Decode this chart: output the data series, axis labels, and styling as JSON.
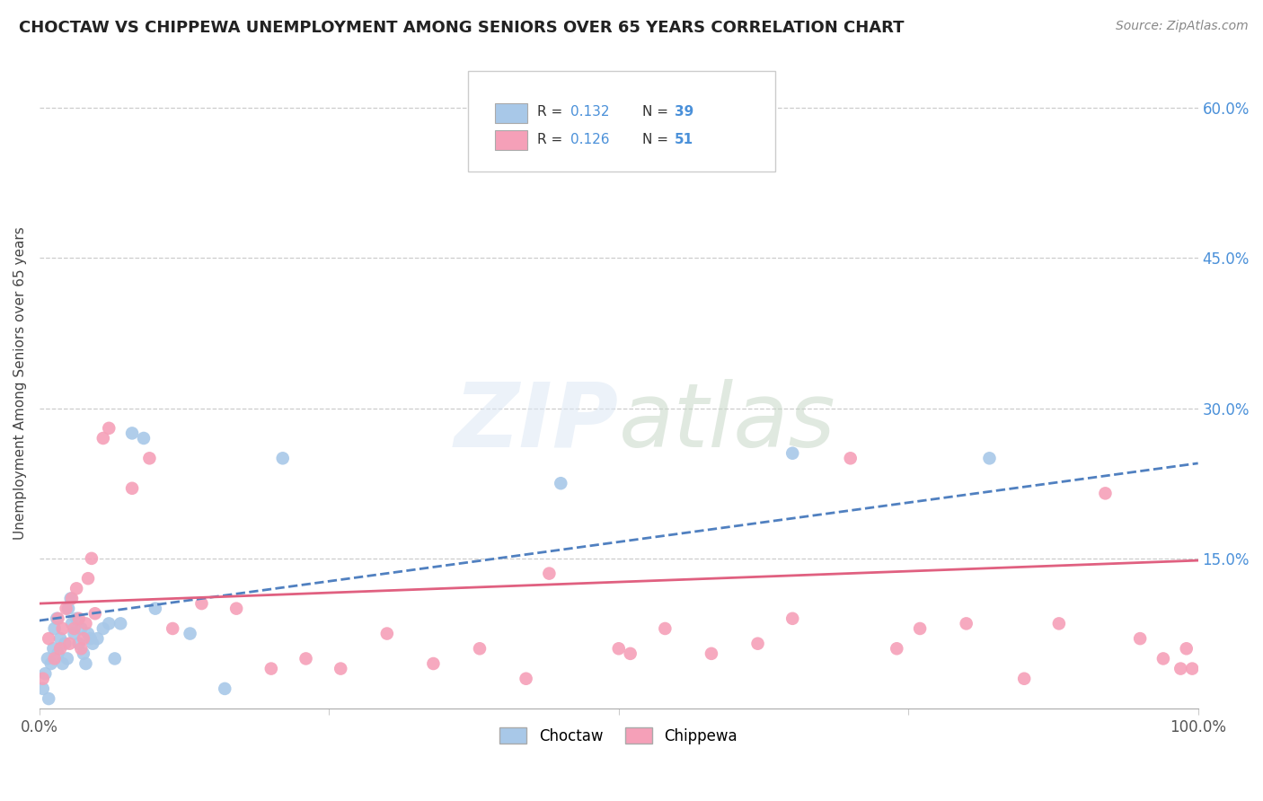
{
  "title": "CHOCTAW VS CHIPPEWA UNEMPLOYMENT AMONG SENIORS OVER 65 YEARS CORRELATION CHART",
  "source": "Source: ZipAtlas.com",
  "ylabel": "Unemployment Among Seniors over 65 years",
  "xlim": [
    0,
    1.0
  ],
  "ylim": [
    0,
    0.65
  ],
  "xtick_positions": [
    0.0,
    0.25,
    0.5,
    0.75,
    1.0
  ],
  "xtick_labels": [
    "0.0%",
    "",
    "",
    "",
    "100.0%"
  ],
  "ytick_positions": [
    0.15,
    0.3,
    0.45,
    0.6
  ],
  "ytick_labels": [
    "15.0%",
    "30.0%",
    "45.0%",
    "60.0%"
  ],
  "legend_r1": "R = 0.132",
  "legend_n1": "N = 39",
  "legend_r2": "R = 0.126",
  "legend_n2": "N = 51",
  "choctaw_color": "#a8c8e8",
  "chippewa_color": "#f5a0b8",
  "choctaw_line_color": "#5080c0",
  "chippewa_line_color": "#e06080",
  "choctaw_x": [
    0.003,
    0.005,
    0.007,
    0.008,
    0.01,
    0.012,
    0.013,
    0.015,
    0.016,
    0.018,
    0.02,
    0.022,
    0.024,
    0.025,
    0.027,
    0.028,
    0.03,
    0.032,
    0.034,
    0.036,
    0.038,
    0.04,
    0.042,
    0.044,
    0.046,
    0.05,
    0.055,
    0.06,
    0.065,
    0.07,
    0.08,
    0.09,
    0.1,
    0.13,
    0.16,
    0.21,
    0.45,
    0.65,
    0.82
  ],
  "choctaw_y": [
    0.02,
    0.035,
    0.05,
    0.01,
    0.045,
    0.06,
    0.08,
    0.09,
    0.055,
    0.07,
    0.045,
    0.065,
    0.05,
    0.1,
    0.11,
    0.085,
    0.075,
    0.09,
    0.065,
    0.08,
    0.055,
    0.045,
    0.075,
    0.07,
    0.065,
    0.07,
    0.08,
    0.085,
    0.05,
    0.085,
    0.275,
    0.27,
    0.1,
    0.075,
    0.02,
    0.25,
    0.225,
    0.255,
    0.25
  ],
  "chippewa_x": [
    0.003,
    0.008,
    0.013,
    0.016,
    0.018,
    0.02,
    0.023,
    0.026,
    0.028,
    0.03,
    0.032,
    0.034,
    0.036,
    0.038,
    0.04,
    0.042,
    0.045,
    0.048,
    0.055,
    0.06,
    0.08,
    0.095,
    0.115,
    0.14,
    0.17,
    0.2,
    0.23,
    0.26,
    0.3,
    0.34,
    0.38,
    0.42,
    0.44,
    0.5,
    0.51,
    0.54,
    0.58,
    0.62,
    0.65,
    0.7,
    0.74,
    0.76,
    0.8,
    0.85,
    0.88,
    0.92,
    0.95,
    0.97,
    0.985,
    0.99,
    0.995
  ],
  "chippewa_y": [
    0.03,
    0.07,
    0.05,
    0.09,
    0.06,
    0.08,
    0.1,
    0.065,
    0.11,
    0.08,
    0.12,
    0.09,
    0.06,
    0.07,
    0.085,
    0.13,
    0.15,
    0.095,
    0.27,
    0.28,
    0.22,
    0.25,
    0.08,
    0.105,
    0.1,
    0.04,
    0.05,
    0.04,
    0.075,
    0.045,
    0.06,
    0.03,
    0.135,
    0.06,
    0.055,
    0.08,
    0.055,
    0.065,
    0.09,
    0.25,
    0.06,
    0.08,
    0.085,
    0.03,
    0.085,
    0.215,
    0.07,
    0.05,
    0.04,
    0.06,
    0.04
  ],
  "choctaw_trend": [
    0.088,
    0.245
  ],
  "chippewa_trend": [
    0.105,
    0.148
  ]
}
